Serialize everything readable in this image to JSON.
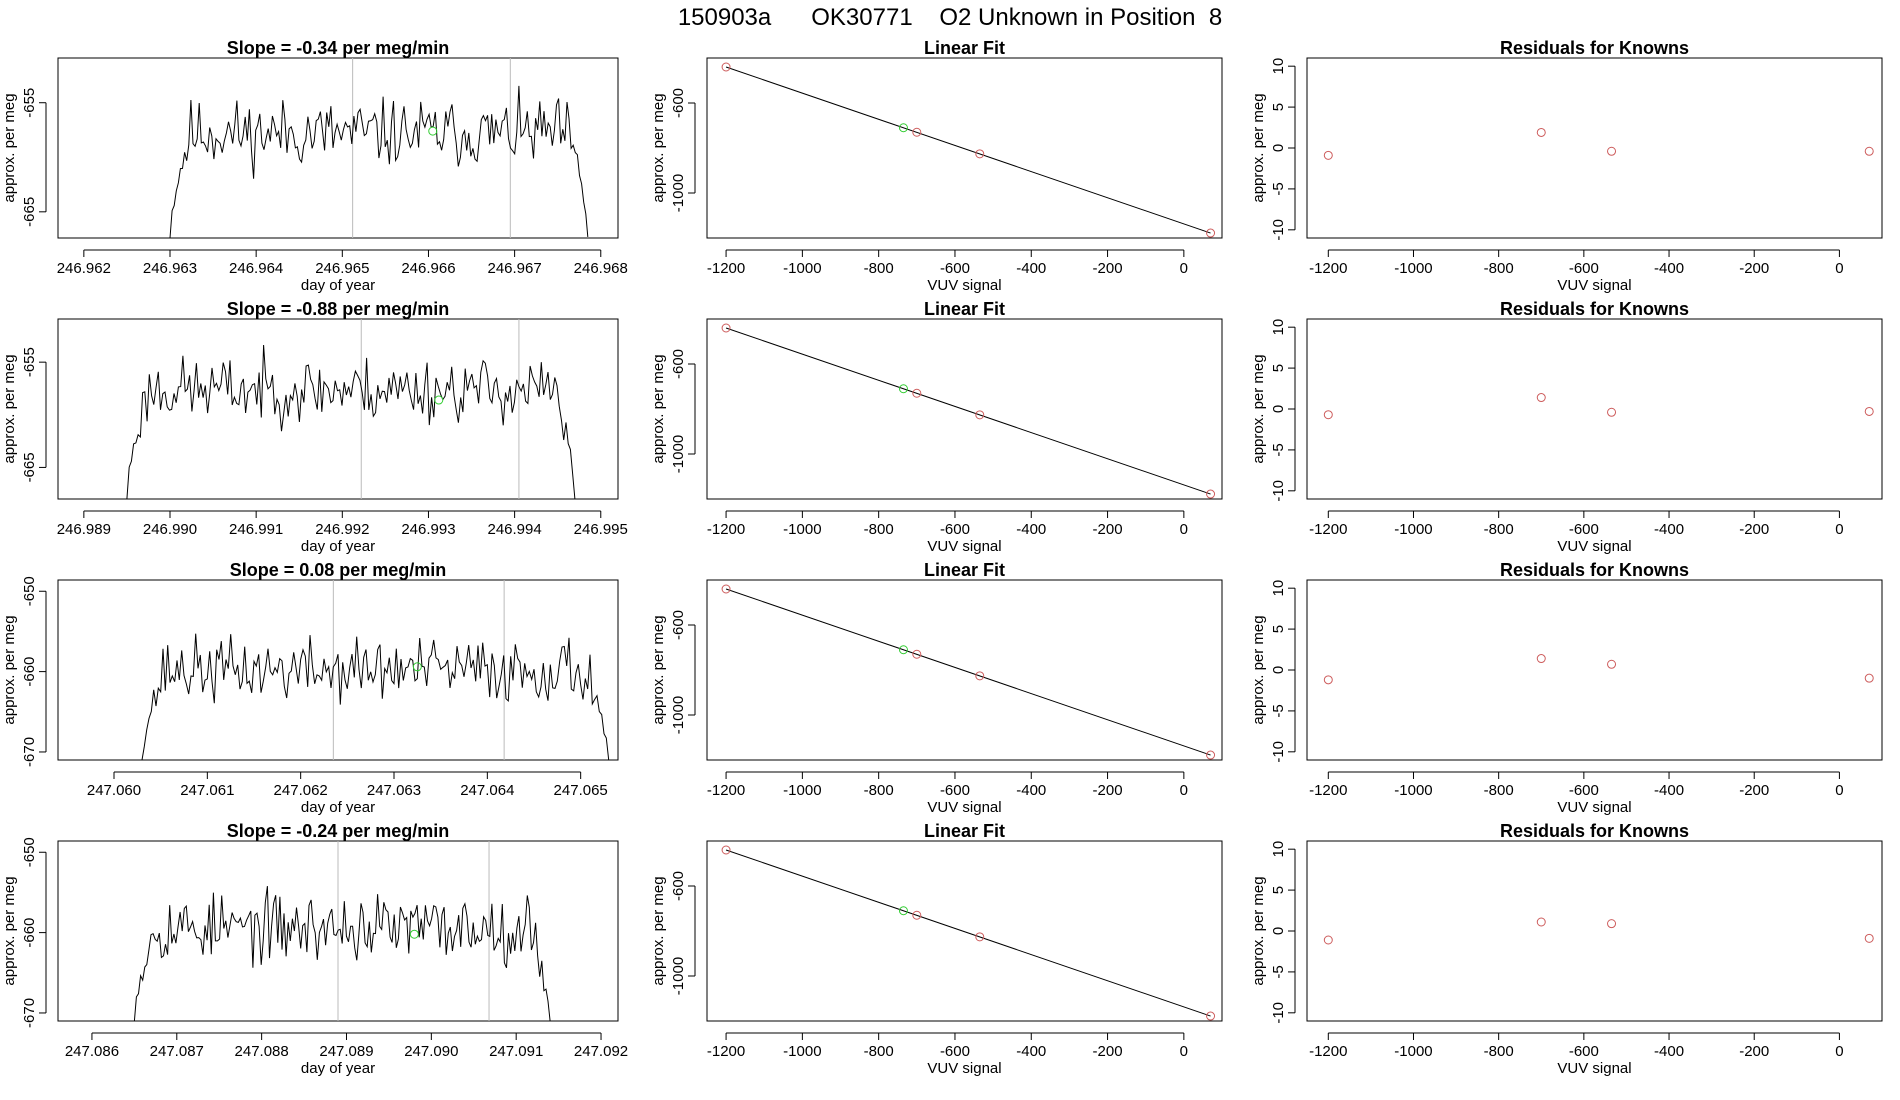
{
  "main_title": "150903a      OK30771    O2 Unknown in Position  8",
  "chart_data": [
    {
      "type": "line",
      "title": "Slope =  -0.34  per meg/min",
      "xlabel": "day of year",
      "ylabel": "approx. per meg",
      "xlim": [
        246.9617,
        246.9682
      ],
      "ylim": [
        -667.4,
        -650.9
      ],
      "xticks": [
        "246.962",
        "246.963",
        "246.964",
        "246.965",
        "246.966",
        "246.967",
        "246.968"
      ],
      "xtick_values": [
        246.962,
        246.963,
        246.964,
        246.965,
        246.966,
        246.967,
        246.968
      ],
      "yticks": [
        "-665",
        "-655"
      ],
      "ytick_values": [
        -665,
        -655
      ],
      "vlines": [
        246.96512,
        246.96695
      ],
      "marker": {
        "x": 246.96605,
        "y": -657.6
      },
      "trace": {
        "x0": 246.963,
        "x1": 246.96785,
        "seed": 11,
        "base": -657.8,
        "amp": 1.9,
        "start_y": -667.4,
        "end_y": -667.3
      }
    },
    {
      "type": "line",
      "title": "Linear Fit",
      "xlabel": "VUV signal",
      "ylabel": "approx. per meg",
      "xlim": [
        -1250,
        100
      ],
      "ylim": [
        -1200,
        -400
      ],
      "xticks": [
        "-1200",
        "-1000",
        "-800",
        "-600",
        "-400",
        "-200",
        "0"
      ],
      "xtick_values": [
        -1200,
        -1000,
        -800,
        -600,
        -400,
        -200,
        0
      ],
      "yticks": [
        "-1000",
        "-600"
      ],
      "ytick_values": [
        -1000,
        -600
      ],
      "fit_line": {
        "x": [
          -1200,
          70
        ],
        "y": [
          -440,
          -1178
        ]
      },
      "knowns": {
        "x": [
          -1200,
          -700,
          -535,
          70
        ],
        "y": [
          -440,
          -730,
          -826,
          -1178
        ]
      },
      "unknown": {
        "x": -735,
        "y": -710
      }
    },
    {
      "type": "scatter",
      "title": "Residuals for Knowns",
      "xlabel": "VUV signal",
      "ylabel": "approx. per meg",
      "xlim": [
        -1250,
        100
      ],
      "ylim": [
        -11,
        11
      ],
      "xticks": [
        "-1200",
        "-1000",
        "-800",
        "-600",
        "-400",
        "-200",
        "0"
      ],
      "xtick_values": [
        -1200,
        -1000,
        -800,
        -600,
        -400,
        -200,
        0
      ],
      "yticks": [
        "-10",
        "-5",
        "0",
        "5",
        "10"
      ],
      "ytick_values": [
        -10,
        -5,
        0,
        5,
        10
      ],
      "points": {
        "x": [
          -1200,
          -700,
          -535,
          70
        ],
        "y": [
          -0.9,
          1.9,
          -0.4,
          -0.4
        ]
      }
    },
    {
      "type": "line",
      "title": "Slope =  -0.88  per meg/min",
      "xlabel": "day of year",
      "ylabel": "approx. per meg",
      "xlim": [
        246.9887,
        246.9952
      ],
      "ylim": [
        -668.0,
        -650.9
      ],
      "xticks": [
        "246.989",
        "246.990",
        "246.991",
        "246.992",
        "246.993",
        "246.994",
        "246.995"
      ],
      "xtick_values": [
        246.989,
        246.99,
        246.991,
        246.992,
        246.993,
        246.994,
        246.995
      ],
      "yticks": [
        "-665",
        "-655"
      ],
      "ytick_values": [
        -665,
        -655
      ],
      "vlines": [
        246.99222,
        246.99405
      ],
      "marker": {
        "x": 246.99312,
        "y": -658.6
      },
      "trace": {
        "x0": 246.9895,
        "x1": 246.9947,
        "seed": 23,
        "base": -657.6,
        "amp": 1.9,
        "start_y": -668.0,
        "end_y": -668.0
      }
    },
    {
      "type": "line",
      "title": "Linear Fit",
      "xlabel": "VUV signal",
      "ylabel": "approx. per meg",
      "xlim": [
        -1250,
        100
      ],
      "ylim": [
        -1200,
        -400
      ],
      "xticks": [
        "-1200",
        "-1000",
        "-800",
        "-600",
        "-400",
        "-200",
        "0"
      ],
      "xtick_values": [
        -1200,
        -1000,
        -800,
        -600,
        -400,
        -200,
        0
      ],
      "yticks": [
        "-1000",
        "-600"
      ],
      "ytick_values": [
        -1000,
        -600
      ],
      "fit_line": {
        "x": [
          -1200,
          70
        ],
        "y": [
          -440,
          -1178
        ]
      },
      "knowns": {
        "x": [
          -1200,
          -700,
          -535,
          70
        ],
        "y": [
          -440,
          -730,
          -826,
          -1178
        ]
      },
      "unknown": {
        "x": -735,
        "y": -710
      }
    },
    {
      "type": "scatter",
      "title": "Residuals for Knowns",
      "xlabel": "VUV signal",
      "ylabel": "approx. per meg",
      "xlim": [
        -1250,
        100
      ],
      "ylim": [
        -11,
        11
      ],
      "xticks": [
        "-1200",
        "-1000",
        "-800",
        "-600",
        "-400",
        "-200",
        "0"
      ],
      "xtick_values": [
        -1200,
        -1000,
        -800,
        -600,
        -400,
        -200,
        0
      ],
      "yticks": [
        "-10",
        "-5",
        "0",
        "5",
        "10"
      ],
      "ytick_values": [
        -10,
        -5,
        0,
        5,
        10
      ],
      "points": {
        "x": [
          -1200,
          -700,
          -535,
          70
        ],
        "y": [
          -0.7,
          1.4,
          -0.4,
          -0.3
        ]
      }
    },
    {
      "type": "line",
      "title": "Slope =  0.08  per meg/min",
      "xlabel": "day of year",
      "ylabel": "approx. per meg",
      "xlim": [
        247.0594,
        247.0654
      ],
      "ylim": [
        -671.0,
        -648.6
      ],
      "xticks": [
        "247.060",
        "247.061",
        "247.062",
        "247.063",
        "247.064",
        "247.065"
      ],
      "xtick_values": [
        247.06,
        247.061,
        247.062,
        247.063,
        247.064,
        247.065
      ],
      "yticks": [
        "-670",
        "-660",
        "-650"
      ],
      "ytick_values": [
        -670,
        -660,
        -650
      ],
      "vlines": [
        247.06235,
        247.06418
      ],
      "marker": {
        "x": 247.06325,
        "y": -659.4
      },
      "trace": {
        "x0": 247.0603,
        "x1": 247.0653,
        "seed": 37,
        "base": -659.8,
        "amp": 2.5,
        "start_y": -671.0,
        "end_y": -671.0
      }
    },
    {
      "type": "line",
      "title": "Linear Fit",
      "xlabel": "VUV signal",
      "ylabel": "approx. per meg",
      "xlim": [
        -1250,
        100
      ],
      "ylim": [
        -1200,
        -400
      ],
      "xticks": [
        "-1200",
        "-1000",
        "-800",
        "-600",
        "-400",
        "-200",
        "0"
      ],
      "xtick_values": [
        -1200,
        -1000,
        -800,
        -600,
        -400,
        -200,
        0
      ],
      "yticks": [
        "-1000",
        "-600"
      ],
      "ytick_values": [
        -1000,
        -600
      ],
      "fit_line": {
        "x": [
          -1200,
          70
        ],
        "y": [
          -440,
          -1178
        ]
      },
      "knowns": {
        "x": [
          -1200,
          -700,
          -535,
          70
        ],
        "y": [
          -440,
          -730,
          -826,
          -1178
        ]
      },
      "unknown": {
        "x": -735,
        "y": -710
      }
    },
    {
      "type": "scatter",
      "title": "Residuals for Knowns",
      "xlabel": "VUV signal",
      "ylabel": "approx. per meg",
      "xlim": [
        -1250,
        100
      ],
      "ylim": [
        -11,
        11
      ],
      "xticks": [
        "-1200",
        "-1000",
        "-800",
        "-600",
        "-400",
        "-200",
        "0"
      ],
      "xtick_values": [
        -1200,
        -1000,
        -800,
        -600,
        -400,
        -200,
        0
      ],
      "yticks": [
        "-10",
        "-5",
        "0",
        "5",
        "10"
      ],
      "ytick_values": [
        -10,
        -5,
        0,
        5,
        10
      ],
      "points": {
        "x": [
          -1200,
          -700,
          -535,
          70
        ],
        "y": [
          -1.2,
          1.4,
          0.7,
          -1.0
        ]
      }
    },
    {
      "type": "line",
      "title": "Slope =  -0.24  per meg/min",
      "xlabel": "day of year",
      "ylabel": "approx. per meg",
      "xlim": [
        247.0856,
        247.0922
      ],
      "ylim": [
        -671.0,
        -648.6
      ],
      "xticks": [
        "247.086",
        "247.087",
        "247.088",
        "247.089",
        "247.090",
        "247.091",
        "247.092"
      ],
      "xtick_values": [
        247.086,
        247.087,
        247.088,
        247.089,
        247.09,
        247.091,
        247.092
      ],
      "yticks": [
        "-670",
        "-660",
        "-650"
      ],
      "ytick_values": [
        -670,
        -660,
        -650
      ],
      "vlines": [
        247.0889,
        247.09068
      ],
      "marker": {
        "x": 247.0898,
        "y": -660.2
      },
      "trace": {
        "x0": 247.0865,
        "x1": 247.0914,
        "seed": 53,
        "base": -659.4,
        "amp": 2.6,
        "start_y": -671.0,
        "end_y": -671.0
      }
    },
    {
      "type": "line",
      "title": "Linear Fit",
      "xlabel": "VUV signal",
      "ylabel": "approx. per meg",
      "xlim": [
        -1250,
        100
      ],
      "ylim": [
        -1200,
        -400
      ],
      "xticks": [
        "-1200",
        "-1000",
        "-800",
        "-600",
        "-400",
        "-200",
        "0"
      ],
      "xtick_values": [
        -1200,
        -1000,
        -800,
        -600,
        -400,
        -200,
        0
      ],
      "yticks": [
        "-1000",
        "-600"
      ],
      "ytick_values": [
        -1000,
        -600
      ],
      "fit_line": {
        "x": [
          -1200,
          70
        ],
        "y": [
          -440,
          -1178
        ]
      },
      "knowns": {
        "x": [
          -1200,
          -700,
          -535,
          70
        ],
        "y": [
          -440,
          -730,
          -826,
          -1178
        ]
      },
      "unknown": {
        "x": -735,
        "y": -710
      }
    },
    {
      "type": "scatter",
      "title": "Residuals for Knowns",
      "xlabel": "VUV signal",
      "ylabel": "approx. per meg",
      "xlim": [
        -1250,
        100
      ],
      "ylim": [
        -11,
        11
      ],
      "xticks": [
        "-1200",
        "-1000",
        "-800",
        "-600",
        "-400",
        "-200",
        "0"
      ],
      "xtick_values": [
        -1200,
        -1000,
        -800,
        -600,
        -400,
        -200,
        0
      ],
      "yticks": [
        "-10",
        "-5",
        "0",
        "5",
        "10"
      ],
      "ytick_values": [
        -10,
        -5,
        0,
        5,
        10
      ],
      "points": {
        "x": [
          -1200,
          -700,
          -535,
          70
        ],
        "y": [
          -1.1,
          1.1,
          0.9,
          -0.9
        ]
      }
    }
  ],
  "colors": {
    "trace": "#000000",
    "fit_line": "#000000",
    "vline": "#bbbbbb",
    "known_point": "#cd5c5c",
    "unknown_point": "#32cd32"
  }
}
